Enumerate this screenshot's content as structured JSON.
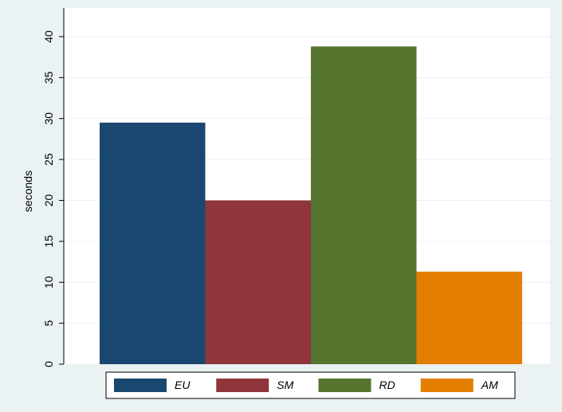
{
  "chart_data": {
    "type": "bar",
    "ylabel": "seconds",
    "series": [
      {
        "name": "EU",
        "color": "#1a476f",
        "values": [
          29.5
        ]
      },
      {
        "name": "SM",
        "color": "#90353b",
        "values": [
          20
        ]
      },
      {
        "name": "RD",
        "color": "#55752f",
        "values": [
          38.8
        ]
      },
      {
        "name": "AM",
        "color": "#e37e00",
        "values": [
          11.3
        ]
      }
    ],
    "ylim": [
      0,
      43.5
    ],
    "yticks": [
      0,
      5,
      10,
      15,
      20,
      25,
      30,
      35,
      40
    ],
    "grid": true,
    "legend": "bottom"
  }
}
